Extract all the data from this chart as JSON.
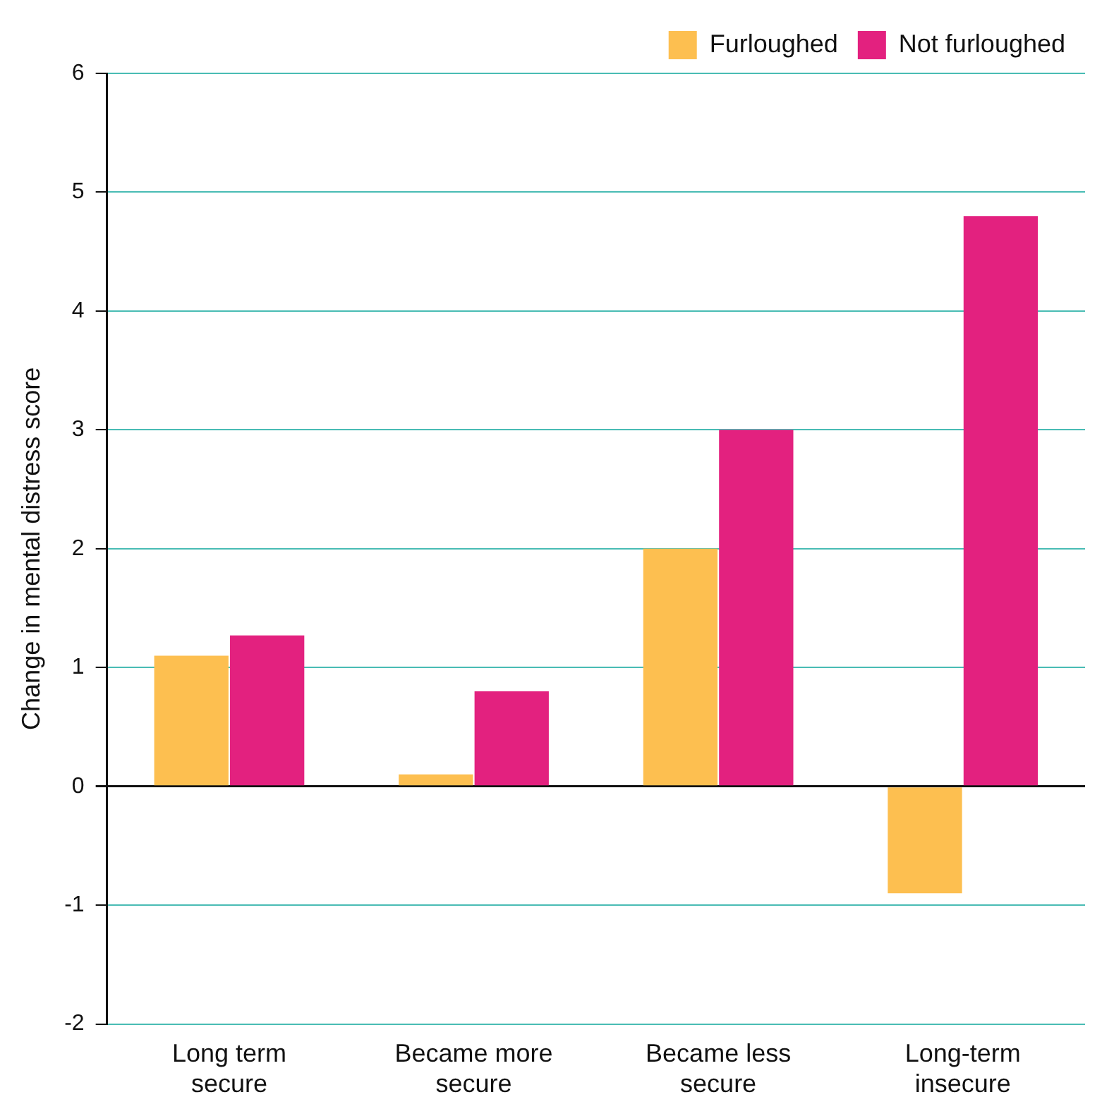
{
  "chart_data": {
    "type": "bar",
    "ylabel": "Change in mental distress score",
    "categories": [
      "Long term secure",
      "Became more secure",
      "Became less secure",
      "Long-term insecure"
    ],
    "series": [
      {
        "name": "Furloughed",
        "color": "#fdbf50",
        "values": [
          1.1,
          0.1,
          2.0,
          -0.9
        ]
      },
      {
        "name": "Not furloughed",
        "color": "#e3217f",
        "values": [
          1.27,
          0.8,
          3.0,
          4.8
        ]
      }
    ],
    "ylim": [
      -2,
      6
    ],
    "yticks": [
      -2,
      -1,
      0,
      1,
      2,
      3,
      4,
      5,
      6
    ],
    "grid": "y",
    "legend": "top right"
  }
}
